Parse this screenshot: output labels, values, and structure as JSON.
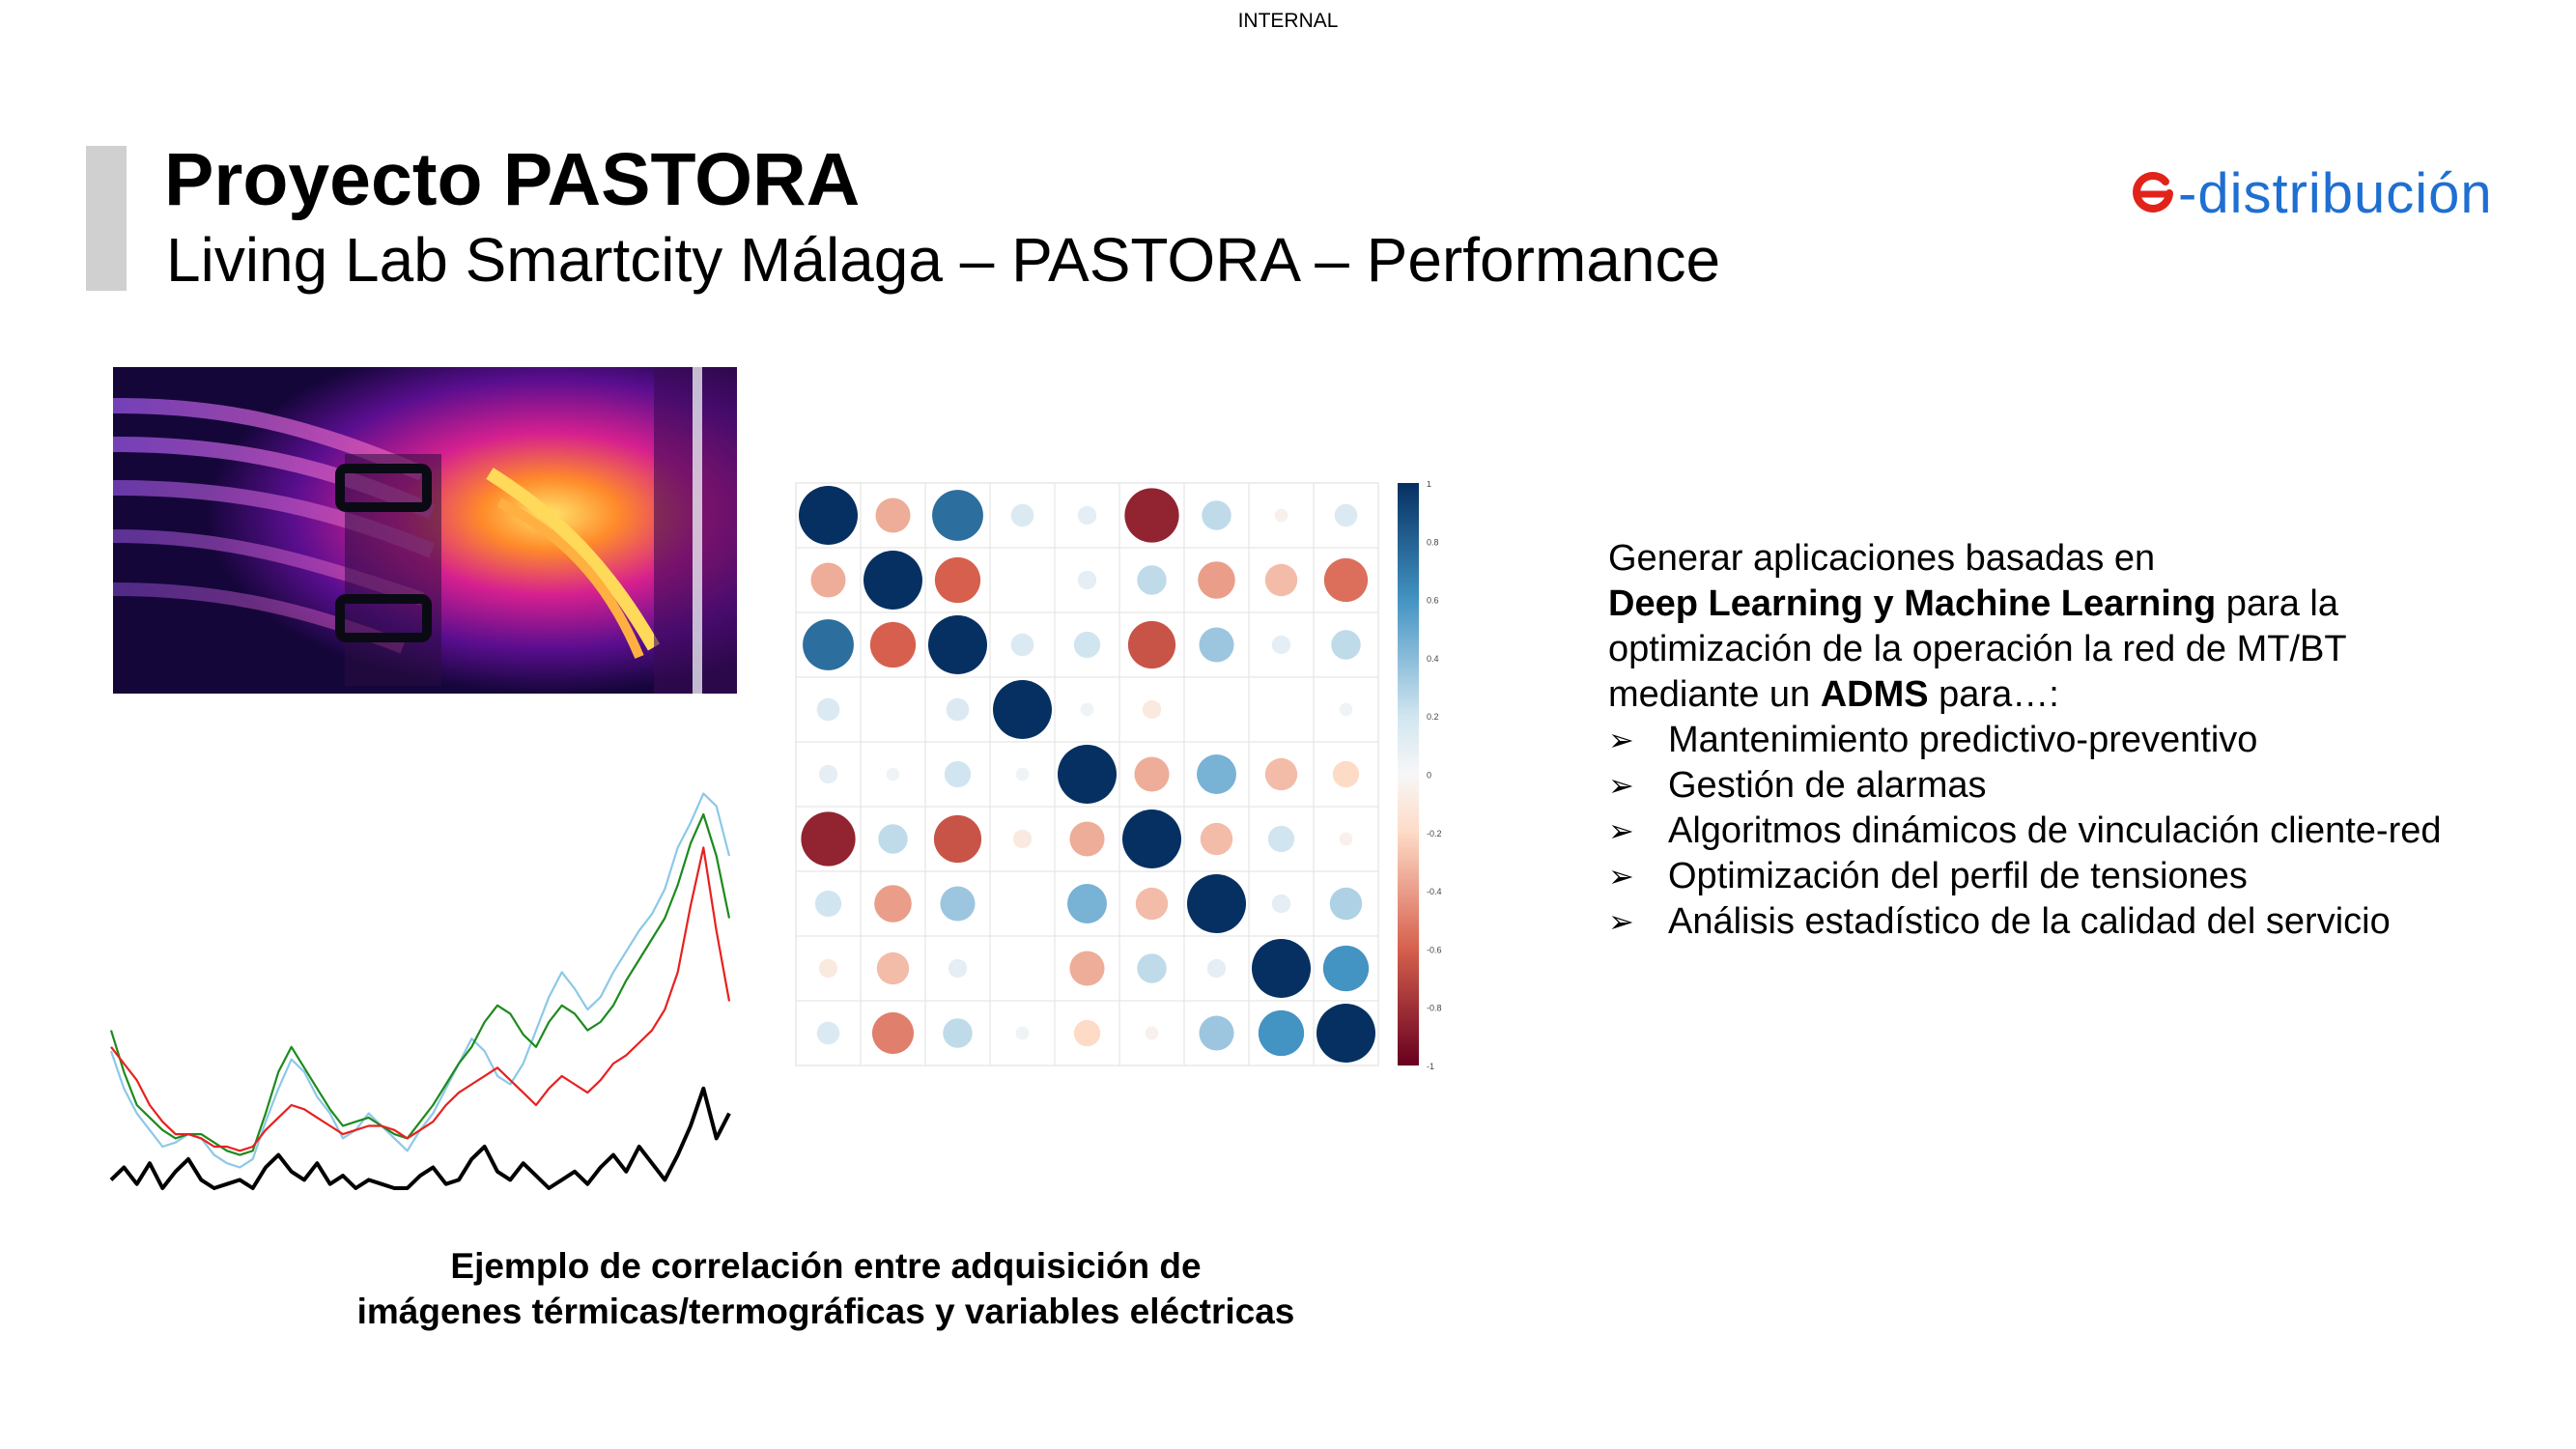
{
  "classification": "INTERNAL",
  "header": {
    "title": "Proyecto PASTORA",
    "subtitle": "Living Lab Smartcity Málaga – PASTORA – Performance"
  },
  "logo": {
    "text": "-distribución",
    "e_color": "#e2231a",
    "text_color": "#1f6fd1"
  },
  "caption": {
    "line1": "Ejemplo de correlación entre adquisición de",
    "line2": "imágenes térmicas/termográficas y variables eléctricas"
  },
  "description": {
    "line1": "Generar aplicaciones basadas en",
    "line2_bold": "Deep Learning y Machine Learning",
    "line2_rest": " para la",
    "line3": "optimización de la operación la red de MT/BT",
    "line4_pre": "mediante un ",
    "line4_bold": "ADMS",
    "line4_post": " para…:"
  },
  "bullets": [
    "Mantenimiento predictivo-preventivo",
    "Gestión de alarmas",
    "Algoritmos dinámicos de vinculación cliente-red",
    "Optimización del perfil de tensiones",
    "Análisis estadístico de la calidad del servicio"
  ],
  "bullet_icon": "arrowhead-bullet-icon",
  "chart_data": [
    {
      "type": "heatmap",
      "title": "",
      "colorbar_ticks": [
        "1",
        "0.8",
        "0.6",
        "0.4",
        "0.2",
        "0",
        "-0.2",
        "-0.4",
        "-0.6",
        "-0.8",
        "-1"
      ],
      "matrix": [
        [
          1.0,
          -0.35,
          0.75,
          0.15,
          0.1,
          -0.85,
          0.25,
          -0.05,
          0.15
        ],
        [
          -0.35,
          1.0,
          -0.6,
          0.0,
          0.1,
          0.25,
          -0.4,
          -0.3,
          -0.55
        ],
        [
          0.75,
          -0.6,
          1.0,
          0.15,
          0.2,
          -0.65,
          0.35,
          0.1,
          0.25
        ],
        [
          0.15,
          0.0,
          0.15,
          1.0,
          0.05,
          -0.1,
          0.0,
          0.0,
          0.05
        ],
        [
          0.1,
          0.05,
          0.2,
          0.05,
          1.0,
          -0.35,
          0.45,
          -0.3,
          -0.2
        ],
        [
          -0.85,
          0.25,
          -0.65,
          -0.1,
          -0.35,
          1.0,
          -0.3,
          0.2,
          -0.05
        ],
        [
          0.2,
          -0.4,
          0.35,
          0.0,
          0.45,
          -0.3,
          1.0,
          0.1,
          0.3
        ],
        [
          -0.1,
          -0.3,
          0.1,
          0.0,
          -0.35,
          0.25,
          0.1,
          1.0,
          0.6
        ],
        [
          0.15,
          -0.5,
          0.25,
          0.05,
          -0.2,
          -0.05,
          0.35,
          0.6,
          1.0
        ]
      ]
    },
    {
      "type": "line",
      "title": "",
      "series": [
        {
          "color": "#8cc8e8",
          "values": [
            0.33,
            0.24,
            0.18,
            0.14,
            0.1,
            0.11,
            0.13,
            0.12,
            0.08,
            0.06,
            0.05,
            0.07,
            0.16,
            0.24,
            0.31,
            0.28,
            0.22,
            0.18,
            0.12,
            0.14,
            0.18,
            0.15,
            0.12,
            0.09,
            0.14,
            0.18,
            0.24,
            0.3,
            0.36,
            0.33,
            0.27,
            0.25,
            0.3,
            0.38,
            0.46,
            0.52,
            0.48,
            0.43,
            0.46,
            0.52,
            0.57,
            0.62,
            0.66,
            0.72,
            0.82,
            0.88,
            0.95,
            0.92,
            0.8
          ]
        },
        {
          "color": "#1d8a1d",
          "values": [
            0.38,
            0.28,
            0.2,
            0.17,
            0.14,
            0.12,
            0.13,
            0.13,
            0.11,
            0.09,
            0.08,
            0.09,
            0.18,
            0.28,
            0.34,
            0.29,
            0.24,
            0.19,
            0.15,
            0.16,
            0.17,
            0.15,
            0.13,
            0.12,
            0.16,
            0.2,
            0.25,
            0.3,
            0.34,
            0.4,
            0.44,
            0.42,
            0.37,
            0.34,
            0.4,
            0.44,
            0.42,
            0.38,
            0.4,
            0.44,
            0.5,
            0.55,
            0.6,
            0.65,
            0.73,
            0.83,
            0.9,
            0.8,
            0.65
          ]
        },
        {
          "color": "#e82020",
          "values": [
            0.34,
            0.3,
            0.26,
            0.2,
            0.16,
            0.13,
            0.13,
            0.12,
            0.1,
            0.1,
            0.09,
            0.1,
            0.14,
            0.17,
            0.2,
            0.19,
            0.17,
            0.15,
            0.13,
            0.14,
            0.15,
            0.15,
            0.14,
            0.12,
            0.14,
            0.16,
            0.2,
            0.23,
            0.25,
            0.27,
            0.29,
            0.26,
            0.23,
            0.2,
            0.24,
            0.27,
            0.25,
            0.23,
            0.26,
            0.3,
            0.32,
            0.35,
            0.38,
            0.43,
            0.52,
            0.68,
            0.82,
            0.62,
            0.45
          ]
        },
        {
          "color": "#000000",
          "values": [
            0.02,
            0.05,
            0.01,
            0.06,
            0.0,
            0.04,
            0.07,
            0.02,
            0.0,
            0.01,
            0.02,
            0.0,
            0.05,
            0.08,
            0.04,
            0.02,
            0.06,
            0.01,
            0.03,
            0.0,
            0.02,
            0.01,
            0.0,
            0.0,
            0.03,
            0.05,
            0.01,
            0.02,
            0.07,
            0.1,
            0.04,
            0.02,
            0.06,
            0.03,
            0.0,
            0.02,
            0.04,
            0.01,
            0.05,
            0.08,
            0.04,
            0.1,
            0.06,
            0.02,
            0.08,
            0.15,
            0.24,
            0.12,
            0.18
          ]
        }
      ]
    }
  ]
}
